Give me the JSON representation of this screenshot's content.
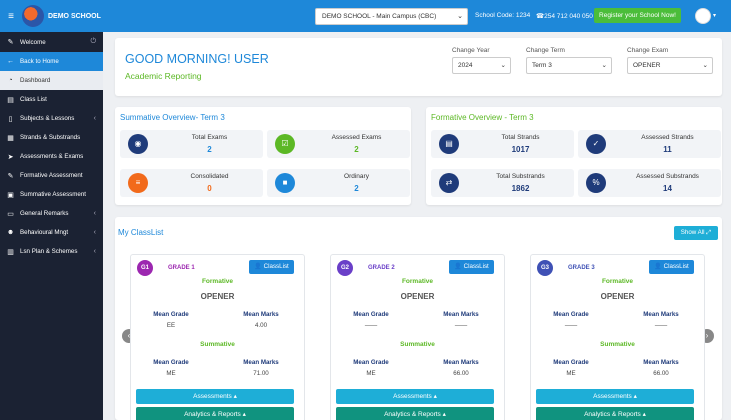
{
  "topbar": {
    "brand": "DEMO SCHOOL",
    "campus_select": "DEMO SCHOOL - Main Campus (CBC)",
    "school_code": "School Code: 1234",
    "phone": "☎254 712 040 050",
    "register": "Register your School Now!"
  },
  "sidebar": {
    "welcome": "Welcome",
    "items": [
      {
        "label": "Back to Home",
        "icon": "arrow-left-icon"
      },
      {
        "label": "Dashboard",
        "icon": "dashboard-icon"
      },
      {
        "label": "Class List",
        "icon": "list-icon"
      },
      {
        "label": "Subjects & Lessons",
        "icon": "book-icon",
        "arrow": true
      },
      {
        "label": "Strands & Substrands",
        "icon": "layers-icon"
      },
      {
        "label": "Assessments & Exams",
        "icon": "send-icon"
      },
      {
        "label": "Formative Assessment",
        "icon": "edit-icon"
      },
      {
        "label": "Summative Assessment",
        "icon": "clipboard-icon"
      },
      {
        "label": "General Remarks",
        "icon": "comment-icon",
        "arrow": true
      },
      {
        "label": "Behavioural Mngt",
        "icon": "user-icon",
        "arrow": true
      },
      {
        "label": "Lsn Plan & Schemes",
        "icon": "calendar-icon",
        "arrow": true
      }
    ]
  },
  "greeting": {
    "title": "GOOD MORNING! USER",
    "subtitle": "Academic Reporting",
    "year_label": "Change Year",
    "year_value": "2024",
    "term_label": "Change Term",
    "term_value": "Term 3",
    "exam_label": "Change Exam",
    "exam_value": "OPENER"
  },
  "summative": {
    "title": "Summative Overview- Term 3",
    "stats": [
      {
        "label": "Total Exams",
        "value": "2"
      },
      {
        "label": "Assessed Exams",
        "value": "2"
      },
      {
        "label": "Consolidated",
        "value": "0"
      },
      {
        "label": "Ordinary",
        "value": "2"
      }
    ]
  },
  "formative": {
    "title": "Formative Overview - Term 3",
    "stats": [
      {
        "label": "Total Strands",
        "value": "1017"
      },
      {
        "label": "Assessed Strands",
        "value": "11"
      },
      {
        "label": "Total Substrands",
        "value": "1862"
      },
      {
        "label": "Assessed Substrands",
        "value": "14"
      }
    ]
  },
  "classlist": {
    "title": "My ClassList",
    "show_all": "Show All ⤢",
    "cards": [
      {
        "badge": "G1",
        "name": "GRADE 1",
        "btn": "👤 ClassList",
        "formative": "Formative",
        "exam": "OPENER",
        "mg_label": "Mean Grade",
        "mm_label": "Mean Marks",
        "f_grade": "EE",
        "f_marks": "4.00",
        "summative": "Summative",
        "s_grade": "ME",
        "s_marks": "71.00",
        "assess_btn": "Assessments ▴",
        "analytics_btn": "Analytics & Reports ▴"
      },
      {
        "badge": "G2",
        "name": "GRADE 2",
        "btn": "👤 ClassList",
        "formative": "Formative",
        "exam": "OPENER",
        "mg_label": "Mean Grade",
        "mm_label": "Mean Marks",
        "f_grade": "——",
        "f_marks": "——",
        "summative": "Summative",
        "s_grade": "ME",
        "s_marks": "66.00",
        "assess_btn": "Assessments ▴",
        "analytics_btn": "Analytics & Reports ▴"
      },
      {
        "badge": "G3",
        "name": "GRADE 3",
        "btn": "👤 ClassList",
        "formative": "Formative",
        "exam": "OPENER",
        "mg_label": "Mean Grade",
        "mm_label": "Mean Marks",
        "f_grade": "——",
        "f_marks": "——",
        "summative": "Summative",
        "s_grade": "ME",
        "s_marks": "66.00",
        "assess_btn": "Assessments ▴",
        "analytics_btn": "Analytics & Reports ▴"
      }
    ]
  },
  "colors": {
    "primary": "#1e88d9",
    "green": "#5cb825",
    "sidebar_bg": "#1b2233",
    "g1": "#9c27b0",
    "g2": "#6a3fc8",
    "g3": "#3f51b5"
  }
}
